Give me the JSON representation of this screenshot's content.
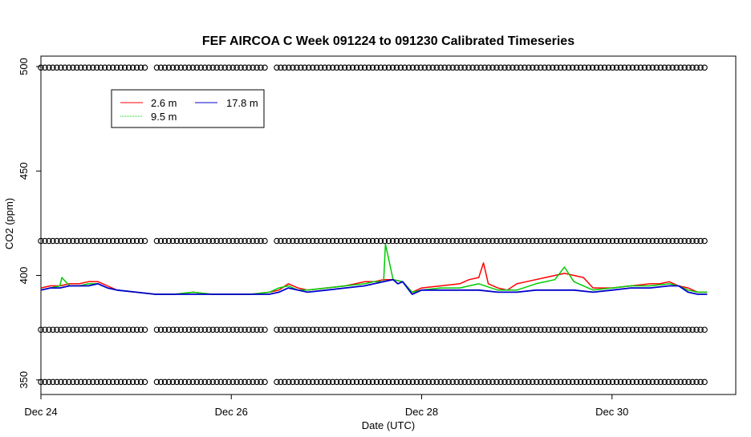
{
  "chart_data": {
    "type": "line",
    "title": "FEF AIRCOA C  Week 091224 to 091230  Calibrated Timeseries",
    "xlabel": "Date (UTC)",
    "ylabel": "CO2 (ppm)",
    "xlim": [
      0.0,
      7.3
    ],
    "ylim": [
      343,
      505
    ],
    "x_ticks": [
      {
        "label": "Dec 24",
        "value": 0
      },
      {
        "label": "Dec 26",
        "value": 2
      },
      {
        "label": "Dec 28",
        "value": 4
      },
      {
        "label": "Dec 30",
        "value": 6
      }
    ],
    "y_ticks": [
      350,
      400,
      450,
      500
    ],
    "legend": {
      "position": "top-left",
      "columns": 2
    },
    "series": [
      {
        "name": "2.6 m",
        "color": "#ff0000",
        "x": [
          0.0,
          0.1,
          0.2,
          0.3,
          0.4,
          0.5,
          0.6,
          0.7,
          0.8,
          1.0,
          1.2,
          1.4,
          1.6,
          1.8,
          2.0,
          2.2,
          2.4,
          2.5,
          2.6,
          2.7,
          2.8,
          3.0,
          3.2,
          3.4,
          3.5,
          3.6,
          3.7,
          3.8,
          3.9,
          4.0,
          4.2,
          4.4,
          4.5,
          4.6,
          4.65,
          4.7,
          4.8,
          4.9,
          5.0,
          5.1,
          5.2,
          5.3,
          5.4,
          5.5,
          5.6,
          5.7,
          5.8,
          6.0,
          6.2,
          6.4,
          6.5,
          6.6,
          6.7,
          6.8,
          6.9,
          7.0
        ],
        "y": [
          394,
          395,
          395,
          396,
          396,
          397,
          397,
          395,
          393,
          392,
          391,
          391,
          392,
          391,
          391,
          391,
          392,
          393,
          396,
          394,
          393,
          394,
          395,
          397,
          397,
          398,
          398,
          397,
          392,
          394,
          395,
          396,
          398,
          399,
          406,
          396,
          394,
          393,
          396,
          397,
          398,
          399,
          400,
          401,
          400,
          399,
          394,
          394,
          395,
          396,
          396,
          397,
          395,
          394,
          392,
          392
        ]
      },
      {
        "name": "9.5 m",
        "color": "#00cc00",
        "x": [
          0.0,
          0.1,
          0.2,
          0.22,
          0.3,
          0.4,
          0.5,
          0.6,
          0.7,
          0.8,
          1.0,
          1.2,
          1.4,
          1.6,
          1.8,
          2.0,
          2.2,
          2.4,
          2.5,
          2.6,
          2.7,
          2.8,
          3.0,
          3.2,
          3.4,
          3.5,
          3.6,
          3.62,
          3.7,
          3.8,
          3.9,
          4.0,
          4.2,
          4.4,
          4.6,
          4.8,
          5.0,
          5.2,
          5.4,
          5.5,
          5.6,
          5.8,
          6.0,
          6.2,
          6.4,
          6.6,
          6.7,
          6.8,
          6.9,
          7.0
        ],
        "y": [
          393,
          394,
          395,
          399,
          395,
          395,
          396,
          396,
          394,
          393,
          392,
          391,
          391,
          392,
          391,
          391,
          391,
          392,
          394,
          395,
          393,
          393,
          394,
          395,
          396,
          397,
          397,
          415,
          398,
          397,
          392,
          393,
          394,
          394,
          396,
          393,
          393,
          396,
          398,
          404,
          397,
          393,
          394,
          395,
          395,
          396,
          395,
          393,
          392,
          392
        ]
      },
      {
        "name": "17.8 m",
        "color": "#0000cc",
        "x": [
          0.0,
          0.1,
          0.2,
          0.3,
          0.4,
          0.5,
          0.6,
          0.7,
          0.8,
          1.0,
          1.2,
          1.4,
          1.6,
          1.8,
          2.0,
          2.2,
          2.4,
          2.5,
          2.6,
          2.7,
          2.8,
          3.0,
          3.2,
          3.4,
          3.5,
          3.6,
          3.7,
          3.75,
          3.8,
          3.9,
          4.0,
          4.2,
          4.4,
          4.6,
          4.8,
          5.0,
          5.2,
          5.4,
          5.6,
          5.8,
          6.0,
          6.2,
          6.4,
          6.6,
          6.7,
          6.8,
          6.9,
          7.0
        ],
        "y": [
          393,
          394,
          394,
          395,
          395,
          395,
          396,
          394,
          393,
          392,
          391,
          391,
          391,
          391,
          391,
          391,
          391,
          392,
          394,
          393,
          392,
          393,
          394,
          395,
          396,
          397,
          398,
          396,
          397,
          391,
          393,
          393,
          393,
          393,
          392,
          392,
          393,
          393,
          393,
          392,
          393,
          394,
          394,
          395,
          395,
          392,
          391,
          391
        ]
      }
    ],
    "markers": {
      "symbol": "open circle",
      "color": "#000000",
      "levels": [
        499.5,
        416.5,
        374,
        349
      ],
      "gaps": [
        [
          1.13,
          1.2
        ],
        [
          2.36,
          2.46
        ]
      ],
      "x_start": 0.0,
      "x_end": 7.0,
      "spacing": 0.042
    }
  }
}
